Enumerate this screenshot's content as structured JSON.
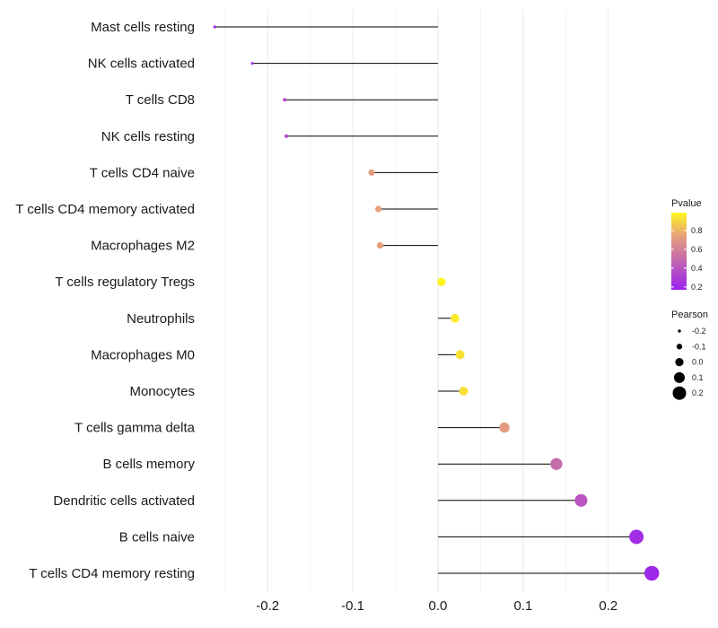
{
  "chart_data": {
    "type": "lollipop",
    "title": "",
    "xlabel": "",
    "ylabel": "",
    "xlim": [
      -0.275,
      0.255
    ],
    "x_ticks": [
      -0.2,
      -0.1,
      0.0,
      0.1,
      0.2
    ],
    "x_tick_labels": [
      "-0.2",
      "-0.1",
      "0.0",
      "0.1",
      "0.2"
    ],
    "grid": true,
    "categories": [
      "Mast cells resting",
      "NK cells activated",
      "T cells CD8",
      "NK cells resting",
      "T cells CD4 naive",
      "T cells CD4 memory activated",
      "Macrophages M2",
      "T cells regulatory  Tregs",
      "Neutrophils",
      "Macrophages M0",
      "Monocytes",
      "T cells gamma delta",
      "B cells memory",
      "Dendritic cells activated",
      "B cells naive",
      "T cells CD4 memory resting"
    ],
    "pearson": [
      -0.262,
      -0.218,
      -0.18,
      -0.178,
      -0.078,
      -0.07,
      -0.068,
      0.004,
      0.02,
      0.026,
      0.03,
      0.078,
      0.139,
      0.168,
      0.233,
      0.251
    ],
    "pvalue": [
      0.2,
      0.25,
      0.35,
      0.35,
      0.72,
      0.74,
      0.74,
      0.98,
      0.95,
      0.93,
      0.92,
      0.72,
      0.5,
      0.4,
      0.22,
      0.2
    ],
    "legend": {
      "position": "right",
      "color": {
        "title": "Pvalue",
        "ticks": [
          "0.8",
          "0.6",
          "0.4",
          "0.2"
        ],
        "tick_values": [
          0.8,
          0.6,
          0.4,
          0.2
        ],
        "range": [
          0.17,
          0.99
        ],
        "low_color": "#9b22f0",
        "mid_color": "#e6a17a",
        "high_color": "#fff71e"
      },
      "size": {
        "title": "Pearson",
        "ticks": [
          "-0.2",
          "-0.1",
          "0.0",
          "0.1",
          "0.2"
        ],
        "tick_values": [
          -0.2,
          -0.1,
          0.0,
          0.1,
          0.2
        ]
      }
    }
  }
}
